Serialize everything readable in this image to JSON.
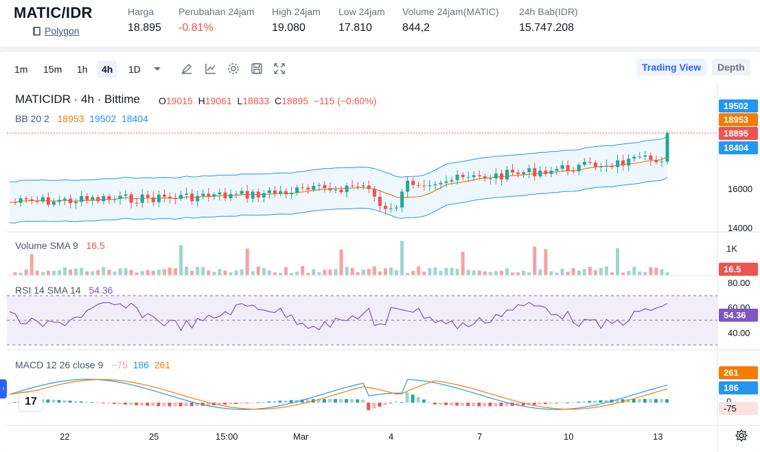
{
  "header": {
    "pair": "MATIC/IDR",
    "network": "Polygon",
    "stats": [
      {
        "label": "Harga",
        "value": "18.895"
      },
      {
        "label": "Perubahan 24jam",
        "value": "-0.81%"
      },
      {
        "label": "High 24jam",
        "value": "19.080"
      },
      {
        "label": "Low 24jam",
        "value": "17.810"
      },
      {
        "label": "Volume 24jam(MATIC)",
        "value": "844,2"
      },
      {
        "label": "24h Bab(IDR)",
        "value": "15.747.208"
      }
    ]
  },
  "toolbar": {
    "timeframes": [
      "1m",
      "15m",
      "1h",
      "4h",
      "1D"
    ],
    "active_timeframe": "4h",
    "icons": [
      "chevron-down-icon",
      "draw-icon",
      "indicator-icon",
      "settings-icon",
      "save-icon",
      "fullscreen-icon"
    ],
    "views": [
      "Trading View",
      "Depth"
    ],
    "active_view": "Trading View"
  },
  "legend": {
    "symbol": "MATICIDR · 4h · Bittime",
    "ohlc": {
      "o_label": "O",
      "o": "19015",
      "h_label": "H",
      "h": "19061",
      "l_label": "L",
      "l": "18833",
      "c_label": "C",
      "c": "18895",
      "change": "−115 (−0.60%)"
    },
    "bb": {
      "name": "BB 20 2",
      "basis": "18953",
      "upper": "19502",
      "lower": "18404"
    },
    "volume": {
      "name": "Volume SMA 9",
      "value": "16.5"
    },
    "rsi": {
      "name": "RSI 14 SMA 14",
      "value": "54.36"
    },
    "macd": {
      "name": "MACD 12 26 close 9",
      "hist": "−75",
      "macd": "186",
      "signal": "261"
    }
  },
  "price_axis": {
    "tags": {
      "upper": "19502",
      "basis": "18953",
      "last": "18895",
      "lower": "18404",
      "volume": "16.5",
      "rsi": "54.36",
      "macd_signal": "261",
      "macd": "186",
      "hist": "-75"
    },
    "labels": {
      "p16000": "16000",
      "p14000": "14000",
      "v1k": "1K",
      "r80": "80.00",
      "r60": "60.00",
      "r40": "40.00",
      "m0": "0"
    }
  },
  "time_axis": [
    "22",
    "25",
    "15:00",
    "Mar",
    "4",
    "7",
    "10",
    "13"
  ],
  "colors": {
    "up": "#26a69a",
    "down": "#ef5350",
    "bb": "#2196f3",
    "basis": "#f57c00",
    "rsi": "#7e57c2",
    "accent": "#2962ff"
  },
  "logo_text": "17"
}
